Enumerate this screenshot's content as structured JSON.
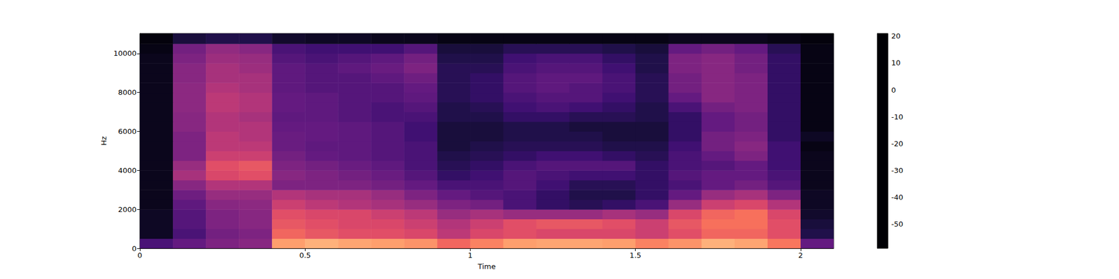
{
  "chart_data": {
    "type": "heatmap",
    "x_label": "Time",
    "y_label": "Hz",
    "xlim": [
      0,
      2.1
    ],
    "ylim": [
      0,
      11025
    ],
    "xticks": [
      0,
      0.5,
      1,
      1.5,
      2
    ],
    "yticks": [
      0,
      2000,
      4000,
      6000,
      8000,
      10000
    ],
    "grid": false,
    "x": [
      0,
      0.1,
      0.2,
      0.3,
      0.4,
      0.5,
      0.6,
      0.7,
      0.8,
      0.9,
      1.0,
      1.1,
      1.2,
      1.3,
      1.4,
      1.5,
      1.6,
      1.7,
      1.8,
      1.9,
      2.0
    ],
    "y": [
      0,
      500,
      1000,
      1500,
      2000,
      2500,
      3000,
      3500,
      4000,
      4500,
      5000,
      5500,
      6000,
      6500,
      7000,
      7500,
      8000,
      8500,
      9000,
      9500,
      10000,
      10500
    ],
    "z": [
      [
        -40,
        -35,
        -30,
        -28,
        5,
        8,
        6,
        5,
        3,
        -5,
        0,
        5,
        6,
        6,
        5,
        0,
        3,
        8,
        6,
        -2,
        -35
      ],
      [
        -55,
        -40,
        -32,
        -30,
        -5,
        -8,
        -10,
        -10,
        -12,
        -18,
        -12,
        -10,
        -12,
        -12,
        -12,
        -15,
        -10,
        -5,
        -5,
        -10,
        -50
      ],
      [
        -55,
        -38,
        -30,
        -28,
        -8,
        -10,
        -12,
        -12,
        -15,
        -20,
        -15,
        -10,
        -8,
        -8,
        -10,
        -15,
        -8,
        -3,
        -3,
        -10,
        -52
      ],
      [
        -55,
        -38,
        -30,
        -28,
        -10,
        -12,
        -12,
        -15,
        -18,
        -25,
        -22,
        -25,
        -25,
        -25,
        -22,
        -25,
        -12,
        -5,
        -3,
        -12,
        -54
      ],
      [
        -56,
        -36,
        -28,
        -27,
        -15,
        -18,
        -20,
        -22,
        -25,
        -30,
        -32,
        -40,
        -45,
        -48,
        -45,
        -40,
        -25,
        -15,
        -12,
        -20,
        -55
      ],
      [
        -56,
        -33,
        -25,
        -25,
        -20,
        -22,
        -22,
        -25,
        -30,
        -35,
        -38,
        -40,
        -45,
        -50,
        -50,
        -45,
        -35,
        -25,
        -22,
        -30,
        -55
      ],
      [
        -56,
        -28,
        -20,
        -20,
        -30,
        -30,
        -30,
        -32,
        -35,
        -40,
        -40,
        -38,
        -42,
        -48,
        -48,
        -45,
        -40,
        -35,
        -32,
        -38,
        -56
      ],
      [
        -56,
        -22,
        -12,
        -10,
        -28,
        -30,
        -32,
        -34,
        -38,
        -45,
        -42,
        -38,
        -40,
        -42,
        -42,
        -45,
        -38,
        -35,
        -35,
        -40,
        -56
      ],
      [
        -56,
        -25,
        -10,
        -8,
        -30,
        -32,
        -34,
        -36,
        -40,
        -48,
        -45,
        -40,
        -38,
        -38,
        -38,
        -45,
        -40,
        -38,
        -35,
        -42,
        -56
      ],
      [
        -56,
        -30,
        -15,
        -15,
        -32,
        -35,
        -36,
        -38,
        -40,
        -50,
        -48,
        -45,
        -42,
        -42,
        -45,
        -48,
        -40,
        -35,
        -30,
        -42,
        -56
      ],
      [
        -56,
        -30,
        -18,
        -18,
        -34,
        -36,
        -36,
        -38,
        -40,
        -52,
        -50,
        -48,
        -48,
        -48,
        -50,
        -50,
        -42,
        -32,
        -28,
        -42,
        -57
      ],
      [
        -56,
        -30,
        -18,
        -20,
        -34,
        -35,
        -36,
        -38,
        -42,
        -52,
        -52,
        -50,
        -50,
        -50,
        -52,
        -52,
        -45,
        -32,
        -30,
        -45,
        -55
      ],
      [
        -56,
        -28,
        -20,
        -20,
        -35,
        -35,
        -36,
        -38,
        -42,
        -52,
        -52,
        -50,
        -50,
        -52,
        -52,
        -52,
        -45,
        -35,
        -32,
        -45,
        -57
      ],
      [
        -56,
        -28,
        -20,
        -22,
        -36,
        -36,
        -38,
        -40,
        -40,
        -50,
        -50,
        -45,
        -45,
        -48,
        -48,
        -50,
        -45,
        -35,
        -32,
        -45,
        -57
      ],
      [
        -56,
        -27,
        -18,
        -20,
        -35,
        -36,
        -38,
        -40,
        -38,
        -50,
        -48,
        -42,
        -40,
        -42,
        -45,
        -50,
        -40,
        -32,
        -30,
        -45,
        -57
      ],
      [
        -56,
        -27,
        -18,
        -20,
        -35,
        -36,
        -38,
        -38,
        -36,
        -48,
        -45,
        -40,
        -38,
        -38,
        -42,
        -48,
        -35,
        -28,
        -30,
        -45,
        -57
      ],
      [
        -56,
        -27,
        -20,
        -22,
        -36,
        -38,
        -38,
        -38,
        -35,
        -48,
        -45,
        -38,
        -36,
        -38,
        -40,
        -48,
        -32,
        -28,
        -30,
        -45,
        -57
      ],
      [
        -56,
        -28,
        -22,
        -22,
        -36,
        -38,
        -38,
        -36,
        -33,
        -48,
        -45,
        -38,
        -36,
        -36,
        -40,
        -48,
        -32,
        -28,
        -30,
        -45,
        -57
      ],
      [
        -56,
        -28,
        -22,
        -24,
        -36,
        -38,
        -36,
        -34,
        -30,
        -48,
        -48,
        -40,
        -38,
        -38,
        -42,
        -50,
        -30,
        -28,
        -32,
        -45,
        -57
      ],
      [
        -56,
        -30,
        -24,
        -25,
        -38,
        -40,
        -38,
        -36,
        -32,
        -50,
        -50,
        -42,
        -40,
        -40,
        -45,
        -50,
        -30,
        -28,
        -32,
        -45,
        -57
      ],
      [
        -57,
        -32,
        -26,
        -28,
        -40,
        -42,
        -42,
        -42,
        -38,
        -52,
        -52,
        -48,
        -48,
        -48,
        -50,
        -52,
        -35,
        -32,
        -35,
        -48,
        -57
      ],
      [
        -58,
        -52,
        -50,
        -50,
        -54,
        -55,
        -55,
        -56,
        -56,
        -57,
        -57,
        -57,
        -57,
        -57,
        -57,
        -57,
        -56,
        -56,
        -56,
        -57,
        -58
      ]
    ],
    "colorbar_range": [
      -59,
      21
    ],
    "colorbar_ticks": [
      -50,
      -40,
      -30,
      -20,
      -10,
      0,
      10,
      20
    ]
  }
}
